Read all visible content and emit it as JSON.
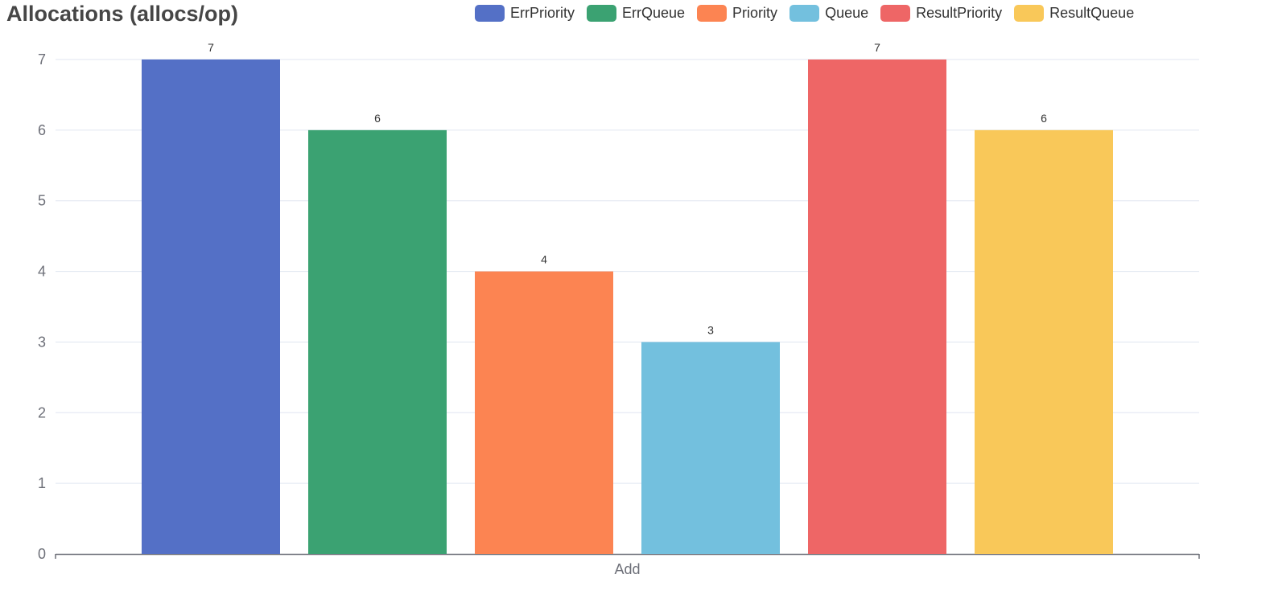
{
  "chart_data": {
    "type": "bar",
    "title": "Allocations (allocs/op)",
    "categories": [
      "Add"
    ],
    "series": [
      {
        "name": "ErrPriority",
        "values": [
          7
        ],
        "color": "#5470c6"
      },
      {
        "name": "ErrQueue",
        "values": [
          6
        ],
        "color": "#3ba272"
      },
      {
        "name": "Priority",
        "values": [
          4
        ],
        "color": "#fc8452"
      },
      {
        "name": "Queue",
        "values": [
          3
        ],
        "color": "#73c0de"
      },
      {
        "name": "ResultPriority",
        "values": [
          7
        ],
        "color": "#ee6666"
      },
      {
        "name": "ResultQueue",
        "values": [
          6
        ],
        "color": "#f9c859"
      }
    ],
    "yticks": [
      0,
      1,
      2,
      3,
      4,
      5,
      6,
      7
    ],
    "ylim": [
      0,
      7
    ],
    "grid": true,
    "legend": "top-right",
    "data_labels": true
  }
}
